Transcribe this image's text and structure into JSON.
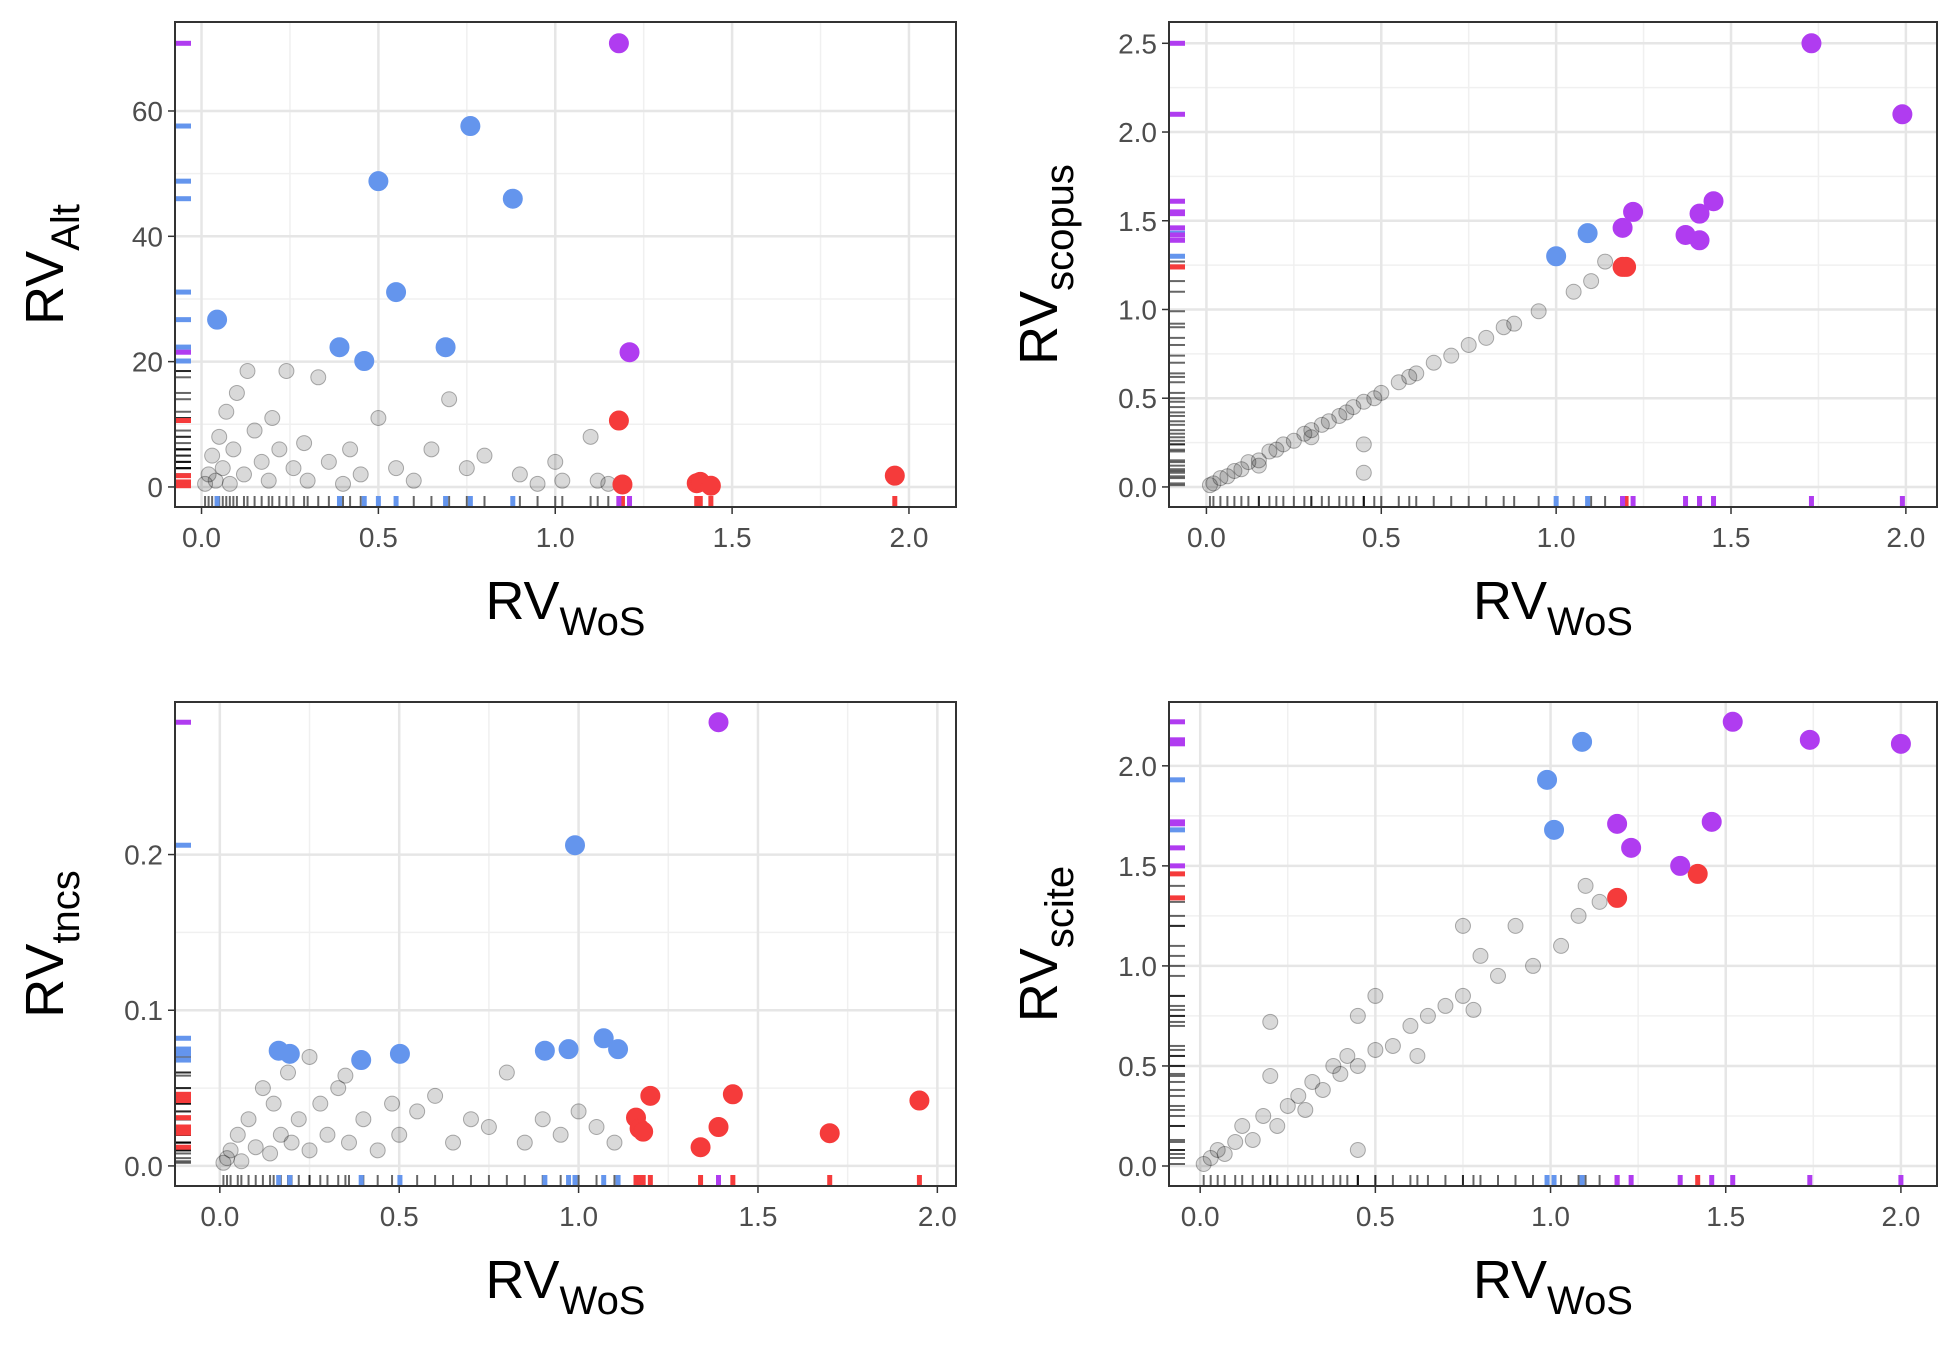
{
  "chart_data": [
    {
      "type": "scatter",
      "x_label": {
        "text": "RV",
        "sub": "WoS"
      },
      "y_label": {
        "text": "RV",
        "sub": "Alt"
      },
      "xlim": [
        -0.075,
        2.133
      ],
      "ylim": [
        -3.2,
        74.2
      ],
      "xticks": [
        {
          "value": 0,
          "label": "0.0"
        },
        0.5,
        {
          "value": 1,
          "label": "1.0"
        },
        1.5,
        {
          "value": 2,
          "label": "2.0"
        }
      ],
      "yticks": [
        0,
        20,
        40,
        60
      ],
      "grid": true,
      "series": [
        {
          "color": "#000000",
          "alpha": 0.15,
          "x": [
            0.01,
            0.02,
            0.03,
            0.04,
            0.05,
            0.06,
            0.07,
            0.08,
            0.09,
            0.1,
            0.12,
            0.13,
            0.15,
            0.17,
            0.19,
            0.2,
            0.22,
            0.24,
            0.26,
            0.29,
            0.3,
            0.33,
            0.36,
            0.4,
            0.42,
            0.45,
            0.5,
            0.55,
            0.6,
            0.65,
            0.7,
            0.75,
            0.8,
            0.9,
            0.95,
            1.0,
            1.02,
            1.1,
            1.12,
            1.15
          ],
          "y": [
            0.5,
            2,
            5,
            1,
            8,
            3,
            12,
            0.5,
            6,
            15,
            2,
            18.5,
            9,
            4,
            1,
            11,
            6,
            18.5,
            3,
            7,
            1,
            17.5,
            4,
            0.5,
            6,
            2,
            11,
            3,
            1,
            6,
            14,
            3,
            5,
            2,
            0.5,
            4,
            1,
            8,
            1,
            0.5
          ]
        },
        {
          "color": "#6495ed",
          "alpha": 1,
          "x": [
            0.044,
            0.39,
            0.46,
            0.5,
            0.55,
            0.69,
            0.76,
            0.88
          ],
          "y": [
            26.7,
            22.3,
            20.1,
            48.8,
            31.1,
            22.3,
            57.6,
            46.0
          ]
        },
        {
          "color": "#f53b3b",
          "alpha": 1,
          "x": [
            1.18,
            1.19,
            1.4,
            1.41,
            1.44,
            1.96
          ],
          "y": [
            10.6,
            0.4,
            0.6,
            0.8,
            0.2,
            1.8
          ]
        },
        {
          "color": "#b03cf0",
          "alpha": 1,
          "x": [
            1.18,
            1.21
          ],
          "y": [
            70.8,
            21.5
          ]
        }
      ]
    },
    {
      "type": "scatter",
      "x_label": {
        "text": "RV",
        "sub": "WoS"
      },
      "y_label": {
        "text": "RV",
        "sub": "scopus"
      },
      "xlim": [
        -0.107,
        2.089
      ],
      "ylim": [
        -0.113,
        2.62
      ],
      "xticks": [
        {
          "value": 0,
          "label": "0.0"
        },
        0.5,
        {
          "value": 1,
          "label": "1.0"
        },
        1.5,
        {
          "value": 2,
          "label": "2.0"
        }
      ],
      "yticks": [
        {
          "value": 0,
          "label": "0.0"
        },
        0.5,
        {
          "value": 1,
          "label": "1.0"
        },
        1.5,
        {
          "value": 2,
          "label": "2.0"
        },
        2.5
      ],
      "grid": true,
      "series": [
        {
          "color": "#000000",
          "alpha": 0.15,
          "x": [
            0.01,
            0.02,
            0.04,
            0.06,
            0.08,
            0.1,
            0.12,
            0.15,
            0.18,
            0.2,
            0.22,
            0.25,
            0.28,
            0.3,
            0.33,
            0.35,
            0.38,
            0.4,
            0.42,
            0.45,
            0.45,
            0.48,
            0.5,
            0.55,
            0.58,
            0.6,
            0.65,
            0.7,
            0.75,
            0.8,
            0.85,
            0.88,
            0.95,
            1.05,
            1.1,
            1.14,
            0.45,
            0.15,
            0.3
          ],
          "y": [
            0.01,
            0.02,
            0.05,
            0.06,
            0.09,
            0.1,
            0.14,
            0.15,
            0.2,
            0.21,
            0.24,
            0.26,
            0.3,
            0.32,
            0.35,
            0.37,
            0.4,
            0.42,
            0.45,
            0.24,
            0.48,
            0.5,
            0.53,
            0.59,
            0.62,
            0.64,
            0.7,
            0.74,
            0.8,
            0.84,
            0.9,
            0.92,
            0.99,
            1.1,
            1.16,
            1.27,
            0.08,
            0.12,
            0.28
          ]
        },
        {
          "color": "#6495ed",
          "alpha": 1,
          "x": [
            1.0,
            1.09
          ],
          "y": [
            1.3,
            1.43
          ]
        },
        {
          "color": "#f53b3b",
          "alpha": 1,
          "x": [
            1.19,
            1.2
          ],
          "y": [
            1.24,
            1.24
          ]
        },
        {
          "color": "#b03cf0",
          "alpha": 1,
          "x": [
            1.73,
            1.99,
            1.19,
            1.22,
            1.37,
            1.41,
            1.41,
            1.45
          ],
          "y": [
            2.5,
            2.1,
            1.46,
            1.55,
            1.42,
            1.54,
            1.39,
            1.61
          ]
        }
      ]
    },
    {
      "type": "scatter",
      "x_label": {
        "text": "RV",
        "sub": "WoS"
      },
      "y_label": {
        "text": "RV",
        "sub": "tncs"
      },
      "xlim": [
        -0.125,
        2.052
      ],
      "ylim": [
        -0.0129,
        0.298
      ],
      "xticks": [
        {
          "value": 0,
          "label": "0.0"
        },
        0.5,
        {
          "value": 1,
          "label": "1.0"
        },
        1.5,
        {
          "value": 2,
          "label": "2.0"
        }
      ],
      "yticks": [
        {
          "value": 0,
          "label": "0.0"
        },
        0.1,
        0.2
      ],
      "grid": true,
      "series": [
        {
          "color": "#000000",
          "alpha": 0.15,
          "x": [
            0.01,
            0.02,
            0.03,
            0.05,
            0.06,
            0.08,
            0.1,
            0.12,
            0.14,
            0.15,
            0.17,
            0.19,
            0.2,
            0.22,
            0.25,
            0.28,
            0.3,
            0.33,
            0.36,
            0.4,
            0.44,
            0.48,
            0.5,
            0.55,
            0.6,
            0.65,
            0.7,
            0.75,
            0.8,
            0.85,
            0.9,
            0.95,
            1.0,
            1.05,
            1.1,
            0.35,
            0.25
          ],
          "y": [
            0.002,
            0.005,
            0.01,
            0.02,
            0.003,
            0.03,
            0.012,
            0.05,
            0.008,
            0.04,
            0.02,
            0.06,
            0.015,
            0.03,
            0.01,
            0.04,
            0.02,
            0.05,
            0.015,
            0.03,
            0.01,
            0.04,
            0.02,
            0.035,
            0.045,
            0.015,
            0.03,
            0.025,
            0.06,
            0.015,
            0.03,
            0.02,
            0.035,
            0.025,
            0.015,
            0.058,
            0.07
          ]
        },
        {
          "color": "#6495ed",
          "alpha": 1,
          "x": [
            0.99,
            0.164,
            0.195,
            0.394,
            0.502,
            0.906,
            0.972,
            1.07,
            1.11
          ],
          "y": [
            0.206,
            0.074,
            0.072,
            0.068,
            0.072,
            0.074,
            0.075,
            0.082,
            0.075
          ]
        },
        {
          "color": "#f53b3b",
          "alpha": 1,
          "x": [
            1.16,
            1.17,
            1.18,
            1.2,
            1.34,
            1.39,
            1.43,
            1.7,
            1.95
          ],
          "y": [
            0.031,
            0.024,
            0.022,
            0.045,
            0.012,
            0.025,
            0.046,
            0.021,
            0.042
          ]
        },
        {
          "color": "#b03cf0",
          "alpha": 1,
          "x": [
            1.39
          ],
          "y": [
            0.285
          ]
        }
      ]
    },
    {
      "type": "scatter",
      "x_label": {
        "text": "RV",
        "sub": "WoS"
      },
      "y_label": {
        "text": "RV",
        "sub": "scite"
      },
      "xlim": [
        -0.089,
        2.103
      ],
      "ylim": [
        -0.1,
        2.319
      ],
      "xticks": [
        {
          "value": 0,
          "label": "0.0"
        },
        0.5,
        {
          "value": 1,
          "label": "1.0"
        },
        1.5,
        {
          "value": 2,
          "label": "2.0"
        }
      ],
      "yticks": [
        {
          "value": 0,
          "label": "0.0"
        },
        0.5,
        {
          "value": 1,
          "label": "1.0"
        },
        1.5,
        {
          "value": 2,
          "label": "2.0"
        }
      ],
      "grid": true,
      "series": [
        {
          "color": "#000000",
          "alpha": 0.15,
          "x": [
            0.01,
            0.03,
            0.05,
            0.07,
            0.1,
            0.12,
            0.15,
            0.18,
            0.2,
            0.22,
            0.25,
            0.28,
            0.3,
            0.32,
            0.35,
            0.38,
            0.2,
            0.4,
            0.42,
            0.45,
            0.45,
            0.5,
            0.5,
            0.55,
            0.6,
            0.62,
            0.65,
            0.7,
            0.75,
            0.78,
            0.8,
            0.85,
            0.9,
            0.95,
            1.03,
            1.08,
            1.1,
            1.14,
            0.75,
            0.45
          ],
          "y": [
            0.01,
            0.04,
            0.08,
            0.06,
            0.12,
            0.2,
            0.13,
            0.25,
            0.45,
            0.2,
            0.3,
            0.35,
            0.28,
            0.42,
            0.38,
            0.5,
            0.72,
            0.46,
            0.55,
            0.5,
            0.08,
            0.58,
            0.85,
            0.6,
            0.7,
            0.55,
            0.75,
            0.8,
            0.85,
            0.78,
            1.05,
            0.95,
            1.2,
            1.0,
            1.1,
            1.25,
            1.4,
            1.32,
            1.2,
            0.75
          ]
        },
        {
          "color": "#6495ed",
          "alpha": 1,
          "x": [
            0.99,
            1.09,
            1.01
          ],
          "y": [
            1.93,
            2.12,
            1.68
          ]
        },
        {
          "color": "#f53b3b",
          "alpha": 1,
          "x": [
            1.19,
            1.42
          ],
          "y": [
            1.34,
            1.46
          ]
        },
        {
          "color": "#b03cf0",
          "alpha": 1,
          "x": [
            1.52,
            1.74,
            2.0,
            1.19,
            1.23,
            1.37,
            1.46
          ],
          "y": [
            2.22,
            2.13,
            2.11,
            1.71,
            1.59,
            1.5,
            1.72
          ]
        }
      ]
    }
  ]
}
